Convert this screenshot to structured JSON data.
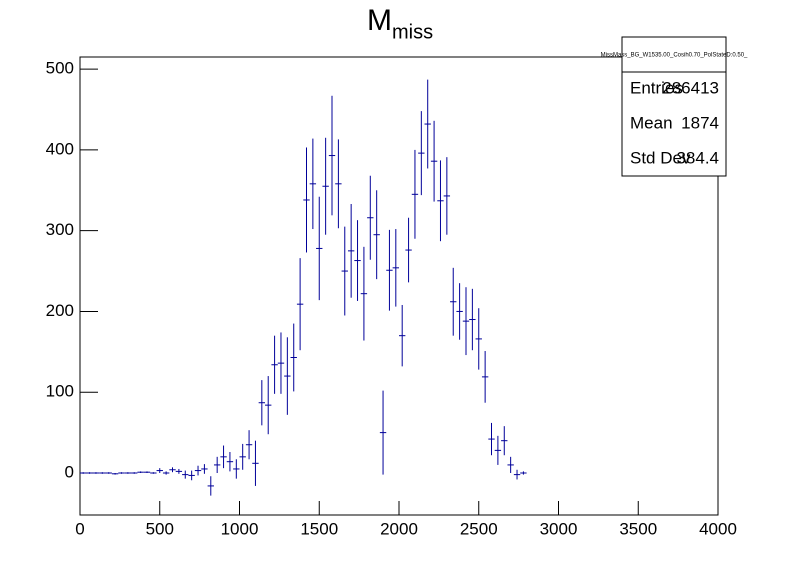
{
  "chart_data": {
    "type": "histogram",
    "title": "M",
    "title_subscript": "miss",
    "bins": [
      0,
      40,
      80,
      120,
      160,
      200,
      240,
      280,
      320,
      360,
      400,
      440,
      480,
      520,
      560,
      600,
      640,
      680,
      720,
      760,
      800,
      840,
      880,
      920,
      960,
      1000,
      1040,
      1080,
      1120,
      1160,
      1200,
      1240,
      1280,
      1320,
      1360,
      1400,
      1440,
      1480,
      1520,
      1560,
      1600,
      1640,
      1680,
      1720,
      1760,
      1800,
      1840,
      1880,
      1920,
      1960,
      2000,
      2040,
      2080,
      2120,
      2160,
      2200,
      2240,
      2280,
      2320,
      2360,
      2400,
      2440,
      2480,
      2520,
      2560,
      2600,
      2640,
      2680,
      2720,
      2760,
      2800
    ],
    "values": [
      0,
      0,
      0,
      0,
      0,
      -1,
      0,
      0,
      0,
      1,
      1,
      0,
      3,
      0,
      4,
      2,
      -2,
      -3,
      3,
      5,
      -16,
      10,
      20,
      14,
      5,
      20,
      35,
      12,
      87,
      84,
      134,
      136,
      120,
      143,
      209,
      338,
      358,
      278,
      355,
      393,
      358,
      250,
      275,
      263,
      222,
      316,
      295,
      50,
      251,
      254,
      170,
      276,
      345,
      396,
      432,
      386,
      337,
      343,
      212,
      200,
      188,
      190,
      166,
      119,
      42,
      28,
      40,
      10,
      -2,
      0
    ],
    "errors": [
      1,
      1,
      1,
      1,
      1,
      1,
      1,
      1,
      1,
      1,
      1,
      1,
      3,
      2,
      3,
      3,
      5,
      6,
      6,
      6,
      12,
      10,
      14,
      12,
      12,
      16,
      18,
      28,
      28,
      36,
      36,
      38,
      48,
      42,
      57,
      65,
      56,
      64,
      60,
      74,
      55,
      55,
      58,
      50,
      58,
      52,
      55,
      52,
      50,
      48,
      38,
      40,
      55,
      52,
      55,
      50,
      50,
      48,
      42,
      35,
      42,
      38,
      38,
      32,
      20,
      18,
      18,
      10,
      6,
      2
    ],
    "color": "#000099",
    "xlim": [
      0,
      4000
    ],
    "xticks": [
      0,
      500,
      1000,
      1500,
      2000,
      2500,
      3000,
      3500,
      4000
    ],
    "ylim": [
      -52,
      515
    ],
    "yticks": [
      0,
      100,
      200,
      300,
      400,
      500
    ],
    "stats": {
      "name": "MissMass_BG_W1535.00_Cosih0.70_PolStateD:0.50_",
      "rows": [
        {
          "label": "Entries",
          "value": 286413
        },
        {
          "label": "Mean",
          "value": 1874
        },
        {
          "label": "Std Dev",
          "value": 384.4
        }
      ]
    }
  }
}
